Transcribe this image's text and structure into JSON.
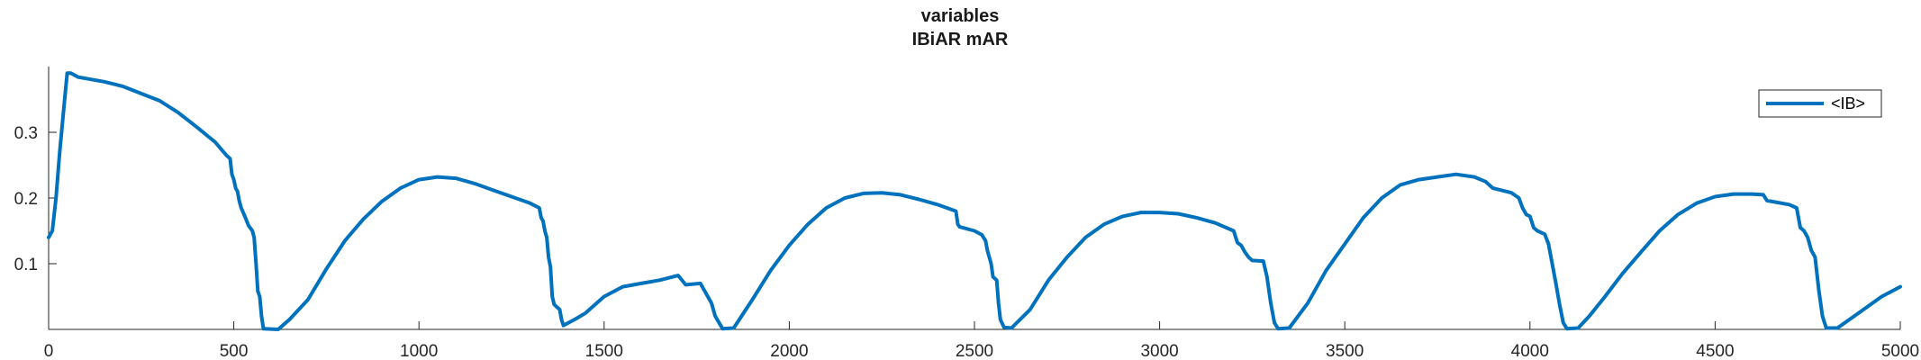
{
  "chart_data": {
    "type": "line",
    "title": [
      "variables",
      "IBiAR mAR"
    ],
    "xlabel": "",
    "ylabel": "",
    "xlim": [
      0,
      5000
    ],
    "ylim": [
      0,
      0.4
    ],
    "xticks": [
      0,
      500,
      1000,
      1500,
      2000,
      2500,
      3000,
      3500,
      4000,
      4500,
      5000
    ],
    "xtick_labels": [
      "0",
      "500",
      "1000",
      "1500",
      "2000",
      "2500",
      "3000",
      "3500",
      "4000",
      "4500",
      "5000"
    ],
    "yticks": [
      0.1,
      0.2,
      0.3
    ],
    "ytick_labels": [
      "0.1",
      "0.2",
      "0.3"
    ],
    "grid": false,
    "legend_position": "top-right",
    "series": [
      {
        "name": "<IB>",
        "color": "#0072BD",
        "points": [
          [
            0,
            0.14
          ],
          [
            10,
            0.15
          ],
          [
            20,
            0.2
          ],
          [
            30,
            0.27
          ],
          [
            40,
            0.33
          ],
          [
            50,
            0.39
          ],
          [
            60,
            0.39
          ],
          [
            80,
            0.384
          ],
          [
            150,
            0.377
          ],
          [
            200,
            0.37
          ],
          [
            300,
            0.348
          ],
          [
            350,
            0.33
          ],
          [
            400,
            0.308
          ],
          [
            450,
            0.285
          ],
          [
            480,
            0.265
          ],
          [
            490,
            0.26
          ],
          [
            495,
            0.236
          ],
          [
            500,
            0.228
          ],
          [
            505,
            0.215
          ],
          [
            510,
            0.21
          ],
          [
            515,
            0.195
          ],
          [
            520,
            0.185
          ],
          [
            530,
            0.172
          ],
          [
            540,
            0.158
          ],
          [
            550,
            0.15
          ],
          [
            555,
            0.14
          ],
          [
            560,
            0.1
          ],
          [
            565,
            0.058
          ],
          [
            570,
            0.05
          ],
          [
            575,
            0.02
          ],
          [
            580,
            0.001
          ],
          [
            620,
            0.0
          ],
          [
            650,
            0.015
          ],
          [
            700,
            0.045
          ],
          [
            750,
            0.092
          ],
          [
            800,
            0.135
          ],
          [
            850,
            0.168
          ],
          [
            900,
            0.195
          ],
          [
            950,
            0.215
          ],
          [
            1000,
            0.228
          ],
          [
            1050,
            0.232
          ],
          [
            1100,
            0.23
          ],
          [
            1150,
            0.222
          ],
          [
            1200,
            0.212
          ],
          [
            1250,
            0.202
          ],
          [
            1300,
            0.192
          ],
          [
            1325,
            0.185
          ],
          [
            1330,
            0.17
          ],
          [
            1335,
            0.165
          ],
          [
            1340,
            0.15
          ],
          [
            1345,
            0.14
          ],
          [
            1350,
            0.11
          ],
          [
            1355,
            0.095
          ],
          [
            1360,
            0.05
          ],
          [
            1365,
            0.038
          ],
          [
            1380,
            0.03
          ],
          [
            1385,
            0.015
          ],
          [
            1390,
            0.006
          ],
          [
            1420,
            0.015
          ],
          [
            1450,
            0.025
          ],
          [
            1500,
            0.05
          ],
          [
            1550,
            0.065
          ],
          [
            1600,
            0.07
          ],
          [
            1650,
            0.075
          ],
          [
            1700,
            0.082
          ],
          [
            1710,
            0.075
          ],
          [
            1720,
            0.068
          ],
          [
            1760,
            0.07
          ],
          [
            1770,
            0.06
          ],
          [
            1780,
            0.05
          ],
          [
            1790,
            0.04
          ],
          [
            1800,
            0.02
          ],
          [
            1820,
            0.001
          ],
          [
            1850,
            0.002
          ],
          [
            1900,
            0.045
          ],
          [
            1950,
            0.09
          ],
          [
            2000,
            0.128
          ],
          [
            2050,
            0.16
          ],
          [
            2100,
            0.185
          ],
          [
            2150,
            0.2
          ],
          [
            2200,
            0.207
          ],
          [
            2250,
            0.208
          ],
          [
            2300,
            0.205
          ],
          [
            2350,
            0.198
          ],
          [
            2400,
            0.19
          ],
          [
            2450,
            0.18
          ],
          [
            2455,
            0.16
          ],
          [
            2460,
            0.156
          ],
          [
            2500,
            0.15
          ],
          [
            2520,
            0.144
          ],
          [
            2530,
            0.135
          ],
          [
            2535,
            0.12
          ],
          [
            2545,
            0.1
          ],
          [
            2550,
            0.08
          ],
          [
            2560,
            0.075
          ],
          [
            2565,
            0.04
          ],
          [
            2570,
            0.015
          ],
          [
            2580,
            0.003
          ],
          [
            2600,
            0.002
          ],
          [
            2650,
            0.03
          ],
          [
            2700,
            0.075
          ],
          [
            2750,
            0.11
          ],
          [
            2800,
            0.14
          ],
          [
            2850,
            0.16
          ],
          [
            2900,
            0.172
          ],
          [
            2950,
            0.178
          ],
          [
            3000,
            0.178
          ],
          [
            3050,
            0.176
          ],
          [
            3100,
            0.17
          ],
          [
            3150,
            0.162
          ],
          [
            3200,
            0.15
          ],
          [
            3210,
            0.132
          ],
          [
            3220,
            0.128
          ],
          [
            3230,
            0.118
          ],
          [
            3240,
            0.11
          ],
          [
            3250,
            0.105
          ],
          [
            3280,
            0.104
          ],
          [
            3290,
            0.08
          ],
          [
            3300,
            0.04
          ],
          [
            3310,
            0.01
          ],
          [
            3320,
            0.001
          ],
          [
            3350,
            0.002
          ],
          [
            3400,
            0.04
          ],
          [
            3450,
            0.09
          ],
          [
            3500,
            0.13
          ],
          [
            3550,
            0.17
          ],
          [
            3600,
            0.2
          ],
          [
            3650,
            0.22
          ],
          [
            3700,
            0.228
          ],
          [
            3750,
            0.232
          ],
          [
            3800,
            0.236
          ],
          [
            3850,
            0.232
          ],
          [
            3880,
            0.225
          ],
          [
            3900,
            0.215
          ],
          [
            3950,
            0.208
          ],
          [
            3970,
            0.2
          ],
          [
            3980,
            0.185
          ],
          [
            3990,
            0.175
          ],
          [
            4000,
            0.172
          ],
          [
            4010,
            0.155
          ],
          [
            4020,
            0.15
          ],
          [
            4040,
            0.145
          ],
          [
            4050,
            0.13
          ],
          [
            4060,
            0.1
          ],
          [
            4070,
            0.07
          ],
          [
            4080,
            0.038
          ],
          [
            4090,
            0.01
          ],
          [
            4100,
            0.001
          ],
          [
            4130,
            0.002
          ],
          [
            4160,
            0.02
          ],
          [
            4200,
            0.048
          ],
          [
            4250,
            0.085
          ],
          [
            4300,
            0.118
          ],
          [
            4350,
            0.15
          ],
          [
            4400,
            0.175
          ],
          [
            4450,
            0.192
          ],
          [
            4500,
            0.202
          ],
          [
            4550,
            0.206
          ],
          [
            4600,
            0.206
          ],
          [
            4630,
            0.205
          ],
          [
            4640,
            0.196
          ],
          [
            4700,
            0.19
          ],
          [
            4720,
            0.185
          ],
          [
            4730,
            0.155
          ],
          [
            4740,
            0.15
          ],
          [
            4750,
            0.14
          ],
          [
            4760,
            0.12
          ],
          [
            4770,
            0.11
          ],
          [
            4780,
            0.06
          ],
          [
            4790,
            0.02
          ],
          [
            4800,
            0.002
          ],
          [
            4830,
            0.002
          ],
          [
            4850,
            0.01
          ],
          [
            4900,
            0.03
          ],
          [
            4950,
            0.05
          ],
          [
            5000,
            0.065
          ]
        ]
      }
    ]
  }
}
